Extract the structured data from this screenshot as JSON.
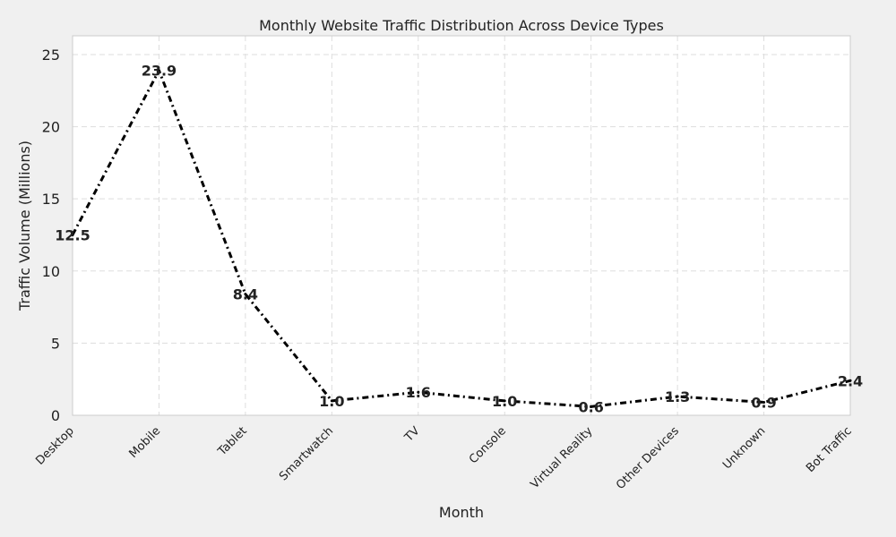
{
  "chart_data": {
    "type": "line",
    "title": "Monthly Website Traffic Distribution Across Device Types",
    "xlabel": "Month",
    "ylabel": "Traffic Volume (Millions)",
    "categories": [
      "Desktop",
      "Mobile",
      "Tablet",
      "Smartwatch",
      "TV",
      "Console",
      "Virtual Reality",
      "Other Devices",
      "Unknown",
      "Bot Traffic"
    ],
    "series": [
      {
        "values": [
          12.5,
          23.9,
          8.4,
          1.0,
          1.6,
          1.0,
          0.6,
          1.3,
          0.9,
          2.4
        ],
        "data_labels": [
          "12.5",
          "23.9",
          "8.4",
          "1.0",
          "1.6",
          "1.0",
          "0.6",
          "1.3",
          "0.9",
          "2.4"
        ],
        "color": "#000000",
        "line_style": "dash-dot"
      }
    ],
    "ylim": [
      0,
      26.3
    ],
    "yticks": [
      0,
      5,
      10,
      15,
      20,
      25
    ],
    "ytick_labels": [
      "0",
      "5",
      "10",
      "15",
      "20",
      "25"
    ],
    "grid": true,
    "legend": false
  },
  "colors": {
    "figure_background": "#f0f0f0",
    "plot_background": "#ffffff",
    "grid": "#dddddd",
    "axes_edge": "#cccccc",
    "text": "#222222"
  }
}
